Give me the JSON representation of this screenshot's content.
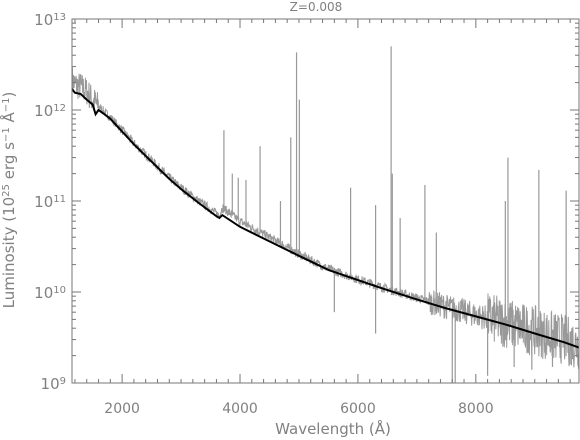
{
  "chart_data": {
    "type": "line",
    "title": "Z=0.008",
    "xlabel": "Wavelength (Å)",
    "ylabel_parts": [
      "Luminosity (10",
      "25",
      " erg s",
      "−1",
      " Å",
      "−1",
      ")"
    ],
    "xlim": [
      1150,
      9750
    ],
    "ylim": [
      1000000000.0,
      10000000000000.0
    ],
    "yscale": "log",
    "grid": false,
    "legend": "none",
    "x_ticks": [
      {
        "value": 2000,
        "label": "2000"
      },
      {
        "value": 4000,
        "label": "4000"
      },
      {
        "value": 6000,
        "label": "6000"
      },
      {
        "value": 8000,
        "label": "8000"
      }
    ],
    "y_ticks": [
      {
        "value": 1000000000.0,
        "base": "10",
        "exp": "9"
      },
      {
        "value": 10000000000.0,
        "base": "10",
        "exp": "10"
      },
      {
        "value": 100000000000.0,
        "base": "10",
        "exp": "11"
      },
      {
        "value": 1000000000000.0,
        "base": "10",
        "exp": "12"
      },
      {
        "value": 10000000000000.0,
        "base": "10",
        "exp": "13"
      }
    ],
    "series": [
      {
        "color": "#000000",
        "x": [
          1150,
          1200,
          1300,
          1400,
          1500,
          1550,
          1600,
          1700,
          1800,
          2000,
          2200,
          2500,
          2800,
          3000,
          3300,
          3600,
          3650,
          3700,
          4000,
          4500,
          5000,
          5500,
          6000,
          6500,
          7000,
          7500,
          8000,
          8500,
          9000,
          9500,
          9750
        ],
        "y": [
          1700000000000.0,
          1550000000000.0,
          1500000000000.0,
          1300000000000.0,
          1150000000000.0,
          900000000000.0,
          1000000000000.0,
          900000000000.0,
          800000000000.0,
          580000000000.0,
          420000000000.0,
          270000000000.0,
          175000000000.0,
          135000000000.0,
          95000000000.0,
          68000000000.0,
          65000000000.0,
          70000000000.0,
          52000000000.0,
          36000000000.0,
          25000000000.0,
          17500000000.0,
          13500000000.0,
          10500000000.0,
          8300000000.0,
          6600000000.0,
          5400000000.0,
          4400000000.0,
          3500000000.0,
          2800000000.0,
          2450000000.0
        ]
      },
      {
        "color": "#999999",
        "continuum_x": [
          1150,
          1200,
          1300,
          1400,
          1500,
          1600,
          1700,
          1800,
          2000,
          2200,
          2500,
          2800,
          3000,
          3300,
          3600,
          3650,
          3700,
          4000,
          4500,
          5000,
          5500,
          6000,
          6500,
          7000,
          7500,
          8000,
          8500,
          9000,
          9500,
          9750
        ],
        "continuum_y": [
          2200000000000.0,
          1900000000000.0,
          1800000000000.0,
          1600000000000.0,
          1300000000000.0,
          1100000000000.0,
          950000000000.0,
          830000000000.0,
          600000000000.0,
          430000000000.0,
          280000000000.0,
          180000000000.0,
          140000000000.0,
          100000000000.0,
          73000000000.0,
          70000000000.0,
          85000000000.0,
          60000000000.0,
          40000000000.0,
          26000000000.0,
          18000000000.0,
          13800000000.0,
          10800000000.0,
          8600000000.0,
          6900000000.0,
          5600000000.0,
          4600000000.0,
          3700000000.0,
          3000000000.0,
          2600000000.0
        ],
        "emission_lines": [
          {
            "x": 3727,
            "y": 600000000000.0
          },
          {
            "x": 3869,
            "y": 200000000000.0
          },
          {
            "x": 3970,
            "y": 180000000000.0
          },
          {
            "x": 4101,
            "y": 170000000000.0
          },
          {
            "x": 4340,
            "y": 400000000000.0
          },
          {
            "x": 4686,
            "y": 100000000000.0
          },
          {
            "x": 4861,
            "y": 500000000000.0
          },
          {
            "x": 4959,
            "y": 4300000000000.0
          },
          {
            "x": 5007,
            "y": 1300000000000.0
          },
          {
            "x": 5876,
            "y": 140000000000.0
          },
          {
            "x": 6300,
            "y": 90000000000.0
          },
          {
            "x": 6563,
            "y": 5000000000000.0
          },
          {
            "x": 6583,
            "y": 200000000000.0
          },
          {
            "x": 6716,
            "y": 65000000000.0
          },
          {
            "x": 7136,
            "y": 150000000000.0
          },
          {
            "x": 7330,
            "y": 45000000000.0
          },
          {
            "x": 8500,
            "y": 100000000000.0
          },
          {
            "x": 8545,
            "y": 300000000000.0
          },
          {
            "x": 9069,
            "y": 220000000000.0
          },
          {
            "x": 9532,
            "y": 130000000000.0
          }
        ],
        "absorption_lines": [
          {
            "x": 5600,
            "y": 6000000000.0
          },
          {
            "x": 6300,
            "y": 3500000000.0
          },
          {
            "x": 7600,
            "y": 1000000000.0
          },
          {
            "x": 7650,
            "y": 1000000000.0
          },
          {
            "x": 8200,
            "y": 1200000000.0
          },
          {
            "x": 8650,
            "y": 1500000000.0
          },
          {
            "x": 8950,
            "y": 1400000000.0
          },
          {
            "x": 9300,
            "y": 1500000000.0
          },
          {
            "x": 9600,
            "y": 1600000000.0
          }
        ]
      }
    ]
  }
}
